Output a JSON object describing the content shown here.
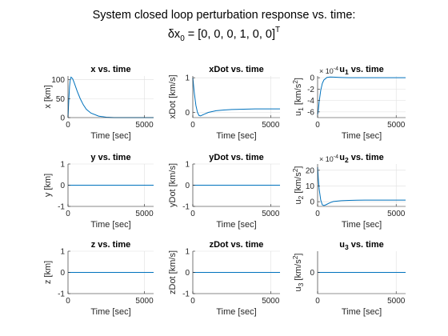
{
  "figure": {
    "title": "System closed loop perturbation response vs. time:",
    "subtitle_prefix": "δx",
    "subtitle_sub": "0",
    "subtitle_rest": " = [0, 0, 0, 1, 0, 0]",
    "subtitle_sup": "T"
  },
  "colors": {
    "line": "#0072BD",
    "grid": "#dfdfdf",
    "axis": "#262626"
  },
  "chart_data": [
    {
      "type": "line",
      "title": "x vs. time",
      "xlabel": "Time [sec]",
      "ylabel": "x [km]",
      "xlim": [
        0,
        5600
      ],
      "ylim": [
        0,
        110
      ],
      "yticks": [
        0,
        50,
        100
      ],
      "xticks": [
        0,
        5000
      ],
      "grid": true,
      "series": [
        {
          "x": [
            0,
            50,
            100,
            150,
            200,
            300,
            400,
            600,
            800,
            1000,
            1200,
            1500,
            2000,
            2500,
            3000,
            3500,
            4000,
            4500,
            5000,
            5600
          ],
          "y": [
            0,
            45,
            82,
            100,
            107,
            103,
            93,
            70,
            50,
            34,
            22,
            12,
            4,
            1,
            0,
            0,
            0,
            0,
            0,
            0
          ]
        }
      ]
    },
    {
      "type": "line",
      "title": "xDot vs. time",
      "xlabel": "Time [sec]",
      "ylabel": "xDot [km/s]",
      "xlim": [
        0,
        5600
      ],
      "ylim": [
        -0.15,
        1.05
      ],
      "yticks": [
        0,
        1
      ],
      "xticks": [
        0,
        5000
      ],
      "grid": true,
      "series": [
        {
          "x": [
            0,
            100,
            200,
            300,
            400,
            500,
            600,
            800,
            1000,
            1500,
            2000,
            2500,
            3000,
            3500,
            4000,
            5000,
            5600
          ],
          "y": [
            1,
            0.55,
            0.2,
            0.0,
            -0.09,
            -0.1,
            -0.08,
            -0.04,
            0.0,
            0.05,
            0.07,
            0.085,
            0.09,
            0.095,
            0.1,
            0.1,
            0.1
          ]
        }
      ]
    },
    {
      "type": "line",
      "title": "u",
      "title_sub": "1",
      "title_rest": " vs. time",
      "xlabel": "Time [sec]",
      "ylabel": "u",
      "ylabel_sub": "1",
      "ylabel_rest": " [km/s",
      "ylabel_sup": "2",
      "ylabel_end": "]",
      "exponent_base": "× 10",
      "exponent_power": "-4",
      "xlim": [
        0,
        5600
      ],
      "ylim": [
        -7,
        0.3
      ],
      "yticks": [
        -6,
        -4,
        -2,
        0
      ],
      "xticks": [
        0,
        5000
      ],
      "grid": true,
      "series": [
        {
          "x": [
            0,
            50,
            100,
            200,
            300,
            400,
            600,
            800,
            1000,
            1500,
            2000,
            3000,
            4000,
            5000,
            5600
          ],
          "y": [
            -6.5,
            -5.6,
            -4.2,
            -2.2,
            -1.0,
            -0.4,
            0.05,
            0.12,
            0.1,
            0.04,
            0.01,
            0,
            0,
            0,
            0
          ]
        }
      ]
    },
    {
      "type": "line",
      "title": "y vs. time",
      "xlabel": "Time [sec]",
      "ylabel": "y [km]",
      "xlim": [
        0,
        5600
      ],
      "ylim": [
        -1,
        1
      ],
      "yticks": [
        -1,
        0,
        1
      ],
      "xticks": [
        0,
        5000
      ],
      "grid": true,
      "series": [
        {
          "x": [
            0,
            5600
          ],
          "y": [
            0,
            0
          ]
        }
      ]
    },
    {
      "type": "line",
      "title": "yDot vs. time",
      "xlabel": "Time [sec]",
      "ylabel": "yDot [km/s]",
      "xlim": [
        0,
        5600
      ],
      "ylim": [
        -1,
        1
      ],
      "yticks": [
        -1,
        0,
        1
      ],
      "xticks": [
        0,
        5000
      ],
      "grid": true,
      "series": [
        {
          "x": [
            0,
            5600
          ],
          "y": [
            0,
            0
          ]
        }
      ]
    },
    {
      "type": "line",
      "title": "u",
      "title_sub": "2",
      "title_rest": " vs. time",
      "xlabel": "Time [sec]",
      "ylabel": "u",
      "ylabel_sub": "2",
      "ylabel_rest": " [km/s",
      "ylabel_sup": "2",
      "ylabel_end": "]",
      "exponent_base": "× 10",
      "exponent_power": "-4",
      "xlim": [
        0,
        5600
      ],
      "ylim": [
        -3,
        24
      ],
      "yticks": [
        0,
        10,
        20
      ],
      "xticks": [
        0,
        5000
      ],
      "grid": true,
      "series": [
        {
          "x": [
            0,
            50,
            100,
            200,
            300,
            400,
            500,
            600,
            800,
            1000,
            1500,
            2000,
            2500,
            3000,
            4000,
            5000,
            5600
          ],
          "y": [
            22,
            14,
            8,
            1,
            -2,
            -2.4,
            -2.1,
            -1.6,
            -0.6,
            0.1,
            0.6,
            0.85,
            0.95,
            1.0,
            1.0,
            1.0,
            1.0
          ]
        }
      ]
    },
    {
      "type": "line",
      "title": "z vs. time",
      "xlabel": "Time [sec]",
      "ylabel": "z [km]",
      "xlim": [
        0,
        5600
      ],
      "ylim": [
        -1,
        1
      ],
      "yticks": [
        -1,
        0,
        1
      ],
      "xticks": [
        0,
        5000
      ],
      "grid": true,
      "series": [
        {
          "x": [
            0,
            5600
          ],
          "y": [
            0,
            0
          ]
        }
      ]
    },
    {
      "type": "line",
      "title": "zDot vs. time",
      "xlabel": "Time [sec]",
      "ylabel": "zDot [km/s]",
      "xlim": [
        0,
        5600
      ],
      "ylim": [
        -1,
        1
      ],
      "yticks": [
        -1,
        0,
        1
      ],
      "xticks": [
        0,
        5000
      ],
      "grid": true,
      "series": [
        {
          "x": [
            0,
            5600
          ],
          "y": [
            0,
            0
          ]
        }
      ]
    },
    {
      "type": "line",
      "title": "u",
      "title_sub": "3",
      "title_rest": " vs. time",
      "xlabel": "Time [sec]",
      "ylabel": "u",
      "ylabel_sub": "3",
      "ylabel_rest": " [km/s",
      "ylabel_sup": "2",
      "ylabel_end": "]",
      "xlim": [
        0,
        5600
      ],
      "ylim": [
        -1,
        1
      ],
      "yticks": [
        0
      ],
      "xticks": [
        0,
        5000
      ],
      "grid": true,
      "series": [
        {
          "x": [
            0,
            5600
          ],
          "y": [
            0,
            0
          ]
        }
      ]
    }
  ]
}
